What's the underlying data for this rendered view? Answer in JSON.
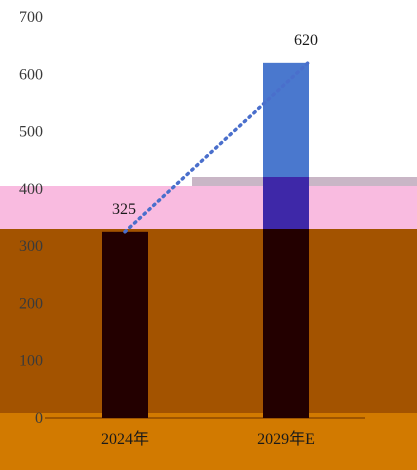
{
  "chart_data": {
    "type": "bar",
    "categories": [
      "2024年",
      "2029年E"
    ],
    "values": [
      325,
      620
    ],
    "value_labels": [
      "325",
      "620"
    ],
    "ylim": [
      0,
      700
    ],
    "yticks": [
      0,
      100,
      200,
      300,
      400,
      500,
      600,
      700
    ],
    "trendline": {
      "style": "dotted",
      "from": 325,
      "to": 620
    },
    "grid": false,
    "legend": "none",
    "colors": {
      "band_pink": "#F9BBE0",
      "band_brown": "#A35300",
      "band_orange": "#D27A00",
      "bar_dark": "#230000",
      "bar_blue": "#4A78CE",
      "bar_overlap": "#3E28A8",
      "trend": "#4A6FCC"
    }
  }
}
